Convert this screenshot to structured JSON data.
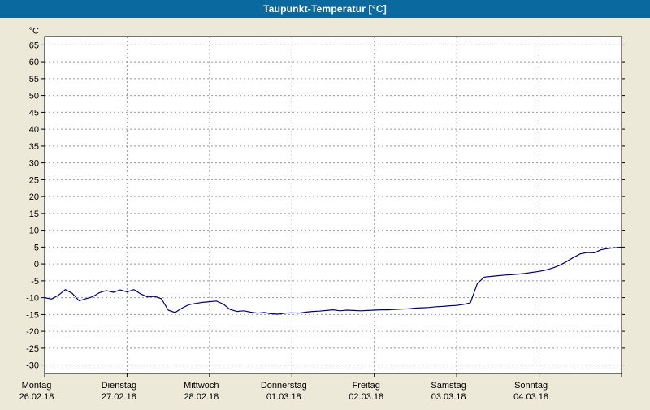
{
  "titlebar": {
    "title": "Taupunkt-Temperatur [°C]"
  },
  "colors": {
    "titlebar_bg": "#0a699e",
    "titlebar_text": "#ffffff",
    "window_bg": "#ece9d8",
    "plot_bg": "#ffffff",
    "grid": "#9a9a9a",
    "axis": "#000000",
    "series": "#000080"
  },
  "chart_data": {
    "type": "line",
    "title": "Taupunkt-Temperatur [°C]",
    "ylabel": "°C",
    "ylim": [
      -30,
      65
    ],
    "ytick_step": 5,
    "grid": "dashed",
    "legend": "none",
    "x_days": [
      {
        "weekday": "Montag",
        "date": "26.02.18"
      },
      {
        "weekday": "Dienstag",
        "date": "27.02.18"
      },
      {
        "weekday": "Mittwoch",
        "date": "28.02.18"
      },
      {
        "weekday": "Donnerstag",
        "date": "01.03.18"
      },
      {
        "weekday": "Freitag",
        "date": "02.03.18"
      },
      {
        "weekday": "Samstag",
        "date": "03.03.18"
      },
      {
        "weekday": "Sonntag",
        "date": "04.03.18"
      }
    ],
    "sample_interval_hours": 2,
    "series": [
      {
        "name": "Taupunkt-Temperatur",
        "color": "#000080",
        "values": [
          -10.0,
          -10.4,
          -9.3,
          -7.6,
          -8.7,
          -10.9,
          -10.3,
          -9.7,
          -8.5,
          -7.9,
          -8.4,
          -7.7,
          -8.3,
          -7.6,
          -8.9,
          -9.8,
          -9.6,
          -10.3,
          -13.7,
          -14.4,
          -13.1,
          -12.1,
          -11.7,
          -11.4,
          -11.2,
          -11.0,
          -11.9,
          -13.5,
          -14.1,
          -13.9,
          -14.3,
          -14.6,
          -14.4,
          -14.8,
          -14.9,
          -14.6,
          -14.5,
          -14.6,
          -14.3,
          -14.1,
          -14.0,
          -13.8,
          -13.6,
          -13.9,
          -13.7,
          -13.8,
          -13.9,
          -13.8,
          -13.7,
          -13.6,
          -13.6,
          -13.5,
          -13.4,
          -13.3,
          -13.1,
          -13.0,
          -12.9,
          -12.7,
          -12.6,
          -12.4,
          -12.3,
          -12.0,
          -11.5,
          -5.8,
          -3.9,
          -3.7,
          -3.5,
          -3.3,
          -3.2,
          -3.0,
          -2.8,
          -2.5,
          -2.2,
          -1.8,
          -1.2,
          -0.4,
          0.7,
          1.9,
          3.0,
          3.4,
          3.3,
          4.2,
          4.6,
          4.8,
          5.0
        ]
      }
    ]
  }
}
